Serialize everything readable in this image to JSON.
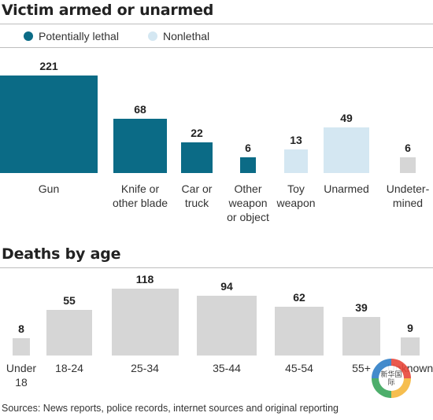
{
  "chart_data": [
    {
      "type": "bar",
      "title": "Victim armed or unarmed",
      "legend": [
        {
          "label": "Potentially lethal",
          "color": "#0b6b86"
        },
        {
          "label": "Nonlethal",
          "color": "#d4e7f2"
        }
      ],
      "categories": [
        "Gun",
        "Knife or\nother blade",
        "Car or\ntruck",
        "Other\nweapon\nor object",
        "Toy\nweapon",
        "Unarmed",
        "Undeter-\nmined"
      ],
      "values": [
        221,
        68,
        22,
        6,
        13,
        49,
        6
      ],
      "colors": [
        "#0b6b86",
        "#0b6b86",
        "#0b6b86",
        "#0b6b86",
        "#d4e7f2",
        "#d4e7f2",
        "#d6d6d6"
      ],
      "legend_placement": "top-left",
      "grid": false
    },
    {
      "type": "bar",
      "title": "Deaths by age",
      "categories": [
        "Under\n18",
        "18-24",
        "25-34",
        "35-44",
        "45-54",
        "55+",
        "Unknown"
      ],
      "values": [
        8,
        55,
        118,
        94,
        62,
        39,
        9
      ],
      "colors": [
        "#d6d6d6",
        "#d6d6d6",
        "#d6d6d6",
        "#d6d6d6",
        "#d6d6d6",
        "#d6d6d6",
        "#d6d6d6"
      ],
      "grid": false
    }
  ],
  "source": "Sources: News reports, police records, internet sources and original reporting",
  "watermark": "新华国际"
}
